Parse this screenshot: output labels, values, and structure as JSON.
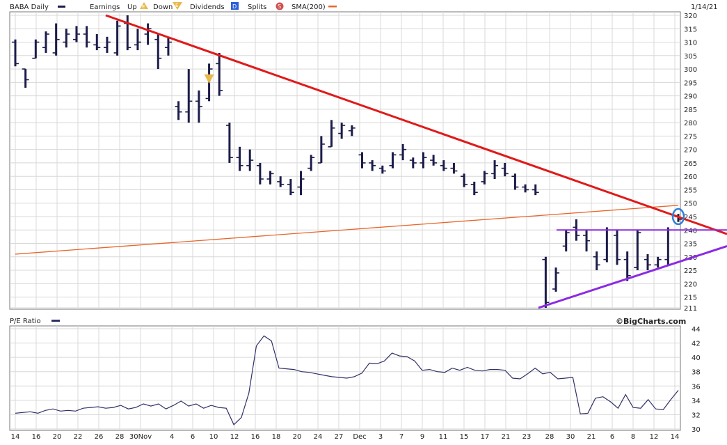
{
  "header": {
    "ticker_label": "BABA Daily",
    "earnings_label": "Earnings",
    "up_label": "Up",
    "up_icon_text": "E",
    "down_label": "Down",
    "down_icon_text": "E",
    "dividends_label": "Dividends",
    "dividends_icon_text": "D",
    "splits_label": "Splits",
    "splits_icon_text": "S",
    "sma_label": "SMA(200)",
    "date_label": "1/14/21"
  },
  "watermark": "©BigCharts.com",
  "lower_header": {
    "label": "P/E Ratio"
  },
  "colors": {
    "bars": "#1c1c4a",
    "sma": "#e8662a",
    "downtrend": "#e01a1a",
    "triangle": "#8a2be2",
    "highlight": "#2f7fd6",
    "pe_line": "#303066",
    "grid": "#d8d8d8",
    "earnings_down_icon": "#e8b84a",
    "dividend_icon": "#2b5fd9",
    "split_icon": "#d05050"
  },
  "chart_data": [
    {
      "type": "ohlc",
      "ylim": [
        211,
        320
      ],
      "y_ticks": [
        211,
        215,
        220,
        225,
        230,
        235,
        240,
        245,
        250,
        255,
        260,
        265,
        270,
        275,
        280,
        285,
        290,
        295,
        300,
        305,
        310,
        315,
        320
      ],
      "x_tick_labels": [
        "14",
        "16",
        "20",
        "22",
        "26",
        "28",
        "30Nov",
        "4",
        "6",
        "10",
        "12",
        "16",
        "18",
        "20",
        "24",
        "27",
        "Dec",
        "3",
        "7",
        "9",
        "11",
        "15",
        "17",
        "21",
        "23",
        "28",
        "30",
        "21",
        "6",
        "8",
        "12",
        "14"
      ],
      "candles": [
        {
          "h": 311,
          "l": 301,
          "o": 310,
          "c": 302
        },
        {
          "h": 300,
          "l": 293,
          "o": 300,
          "c": 296
        },
        {
          "h": 311,
          "l": 304,
          "o": 304,
          "c": 310
        },
        {
          "h": 314,
          "l": 306,
          "o": 308,
          "c": 313
        },
        {
          "h": 317,
          "l": 305,
          "o": 306,
          "c": 311
        },
        {
          "h": 315,
          "l": 308,
          "o": 310,
          "c": 313
        },
        {
          "h": 316,
          "l": 310,
          "o": 311,
          "c": 313
        },
        {
          "h": 316,
          "l": 308,
          "o": 313,
          "c": 310
        },
        {
          "h": 313,
          "l": 307,
          "o": 309,
          "c": 308
        },
        {
          "h": 312,
          "l": 306,
          "o": 308,
          "c": 310
        },
        {
          "h": 318,
          "l": 305,
          "o": 306,
          "c": 316
        },
        {
          "h": 320,
          "l": 307,
          "o": 317,
          "c": 308
        },
        {
          "h": 315,
          "l": 307,
          "o": 309,
          "c": 310
        },
        {
          "h": 317,
          "l": 309,
          "o": 313,
          "c": 315
        },
        {
          "h": 313,
          "l": 300,
          "o": 311,
          "c": 304
        },
        {
          "h": 312,
          "l": 305,
          "o": 308,
          "c": 310
        },
        {
          "h": 288,
          "l": 281,
          "o": 286,
          "c": 284
        },
        {
          "h": 300,
          "l": 280,
          "o": 284,
          "c": 288
        },
        {
          "h": 292,
          "l": 280,
          "o": 288,
          "c": 286
        },
        {
          "h": 302,
          "l": 288,
          "o": 289,
          "c": 300
        },
        {
          "h": 306,
          "l": 290,
          "o": 302,
          "c": 292
        },
        {
          "h": 280,
          "l": 265,
          "o": 279,
          "c": 267
        },
        {
          "h": 271,
          "l": 262,
          "o": 267,
          "c": 264
        },
        {
          "h": 270,
          "l": 262,
          "o": 264,
          "c": 266
        },
        {
          "h": 265,
          "l": 257,
          "o": 264,
          "c": 259
        },
        {
          "h": 262,
          "l": 257,
          "o": 259,
          "c": 261
        },
        {
          "h": 260,
          "l": 256,
          "o": 258,
          "c": 257
        },
        {
          "h": 259,
          "l": 253,
          "o": 257,
          "c": 254
        },
        {
          "h": 262,
          "l": 253,
          "o": 256,
          "c": 259
        },
        {
          "h": 268,
          "l": 262,
          "o": 263,
          "c": 267
        },
        {
          "h": 275,
          "l": 265,
          "o": 265,
          "c": 272
        },
        {
          "h": 281,
          "l": 271,
          "o": 271,
          "c": 278
        },
        {
          "h": 280,
          "l": 274,
          "o": 276,
          "c": 279
        },
        {
          "h": 279,
          "l": 275,
          "o": 277,
          "c": 278
        },
        {
          "h": 269,
          "l": 263,
          "o": 268,
          "c": 265
        },
        {
          "h": 266,
          "l": 262,
          "o": 265,
          "c": 264
        },
        {
          "h": 264,
          "l": 261,
          "o": 263,
          "c": 262
        },
        {
          "h": 269,
          "l": 263,
          "o": 264,
          "c": 268
        },
        {
          "h": 272,
          "l": 266,
          "o": 268,
          "c": 270
        },
        {
          "h": 267,
          "l": 263,
          "o": 266,
          "c": 265
        },
        {
          "h": 269,
          "l": 263,
          "o": 265,
          "c": 267
        },
        {
          "h": 268,
          "l": 264,
          "o": 266,
          "c": 265
        },
        {
          "h": 266,
          "l": 262,
          "o": 264,
          "c": 263
        },
        {
          "h": 265,
          "l": 261,
          "o": 263,
          "c": 262
        },
        {
          "h": 261,
          "l": 256,
          "o": 260,
          "c": 257
        },
        {
          "h": 258,
          "l": 253,
          "o": 257,
          "c": 254
        },
        {
          "h": 262,
          "l": 257,
          "o": 258,
          "c": 261
        },
        {
          "h": 266,
          "l": 259,
          "o": 261,
          "c": 264
        },
        {
          "h": 265,
          "l": 260,
          "o": 263,
          "c": 261
        },
        {
          "h": 261,
          "l": 255,
          "o": 260,
          "c": 256
        },
        {
          "h": 257,
          "l": 254,
          "o": 256,
          "c": 255
        },
        {
          "h": 257,
          "l": 253,
          "o": 255,
          "c": 254
        },
        {
          "h": 230,
          "l": 211,
          "o": 229,
          "c": 213
        },
        {
          "h": 226,
          "l": 217,
          "o": 218,
          "c": 224
        },
        {
          "h": 240,
          "l": 232,
          "o": 234,
          "c": 239
        },
        {
          "h": 244,
          "l": 236,
          "o": 241,
          "c": 238
        },
        {
          "h": 240,
          "l": 232,
          "o": 238,
          "c": 236
        },
        {
          "h": 232,
          "l": 225,
          "o": 230,
          "c": 227
        },
        {
          "h": 241,
          "l": 228,
          "o": 229,
          "c": 240
        },
        {
          "h": 240,
          "l": 227,
          "o": 238,
          "c": 229
        },
        {
          "h": 232,
          "l": 221,
          "o": 229,
          "c": 223
        },
        {
          "h": 240,
          "l": 225,
          "o": 226,
          "c": 239
        },
        {
          "h": 231,
          "l": 225,
          "o": 229,
          "c": 227
        },
        {
          "h": 230,
          "l": 226,
          "o": 227,
          "c": 229
        },
        {
          "h": 241,
          "l": 227,
          "o": 229,
          "c": 240
        },
        {
          "h": 246,
          "l": 243,
          "o": 245,
          "c": 244
        }
      ],
      "sma_200": {
        "start": 231,
        "end": 249.2
      }
    },
    {
      "type": "line",
      "ylim": [
        30,
        44
      ],
      "y_ticks": [
        30,
        32,
        34,
        36,
        38,
        40,
        42,
        44
      ],
      "x_tick_labels": [
        "14",
        "16",
        "20",
        "22",
        "26",
        "28",
        "30Nov",
        "4",
        "6",
        "10",
        "12",
        "16",
        "18",
        "20",
        "24",
        "27",
        "Dec",
        "3",
        "7",
        "9",
        "11",
        "15",
        "17",
        "21",
        "23",
        "28",
        "30",
        "21",
        "6",
        "8",
        "12",
        "14"
      ],
      "values": [
        32.2,
        32.3,
        32.4,
        32.2,
        32.6,
        32.8,
        32.5,
        32.6,
        32.5,
        32.9,
        33.0,
        33.1,
        32.9,
        33.0,
        33.3,
        32.8,
        33.0,
        33.5,
        33.2,
        33.5,
        32.8,
        33.3,
        33.9,
        33.2,
        33.5,
        32.9,
        33.3,
        33.0,
        32.9,
        30.6,
        31.6,
        35.0,
        41.6,
        43.0,
        42.3,
        38.5,
        38.4,
        38.3,
        38.0,
        37.9,
        37.7,
        37.5,
        37.3,
        37.2,
        37.1,
        37.3,
        37.8,
        39.2,
        39.1,
        39.5,
        40.6,
        40.2,
        40.1,
        39.5,
        38.2,
        38.3,
        38.0,
        37.9,
        38.5,
        38.2,
        38.6,
        38.2,
        38.1,
        38.3,
        38.3,
        38.2,
        37.1,
        37.0,
        37.7,
        38.5,
        37.7,
        37.9,
        37.0,
        37.1,
        37.2,
        32.1,
        32.2,
        34.3,
        34.5,
        33.8,
        32.9,
        34.8,
        33.0,
        32.9,
        34.1,
        32.8,
        32.7,
        34.1,
        35.4
      ]
    }
  ]
}
